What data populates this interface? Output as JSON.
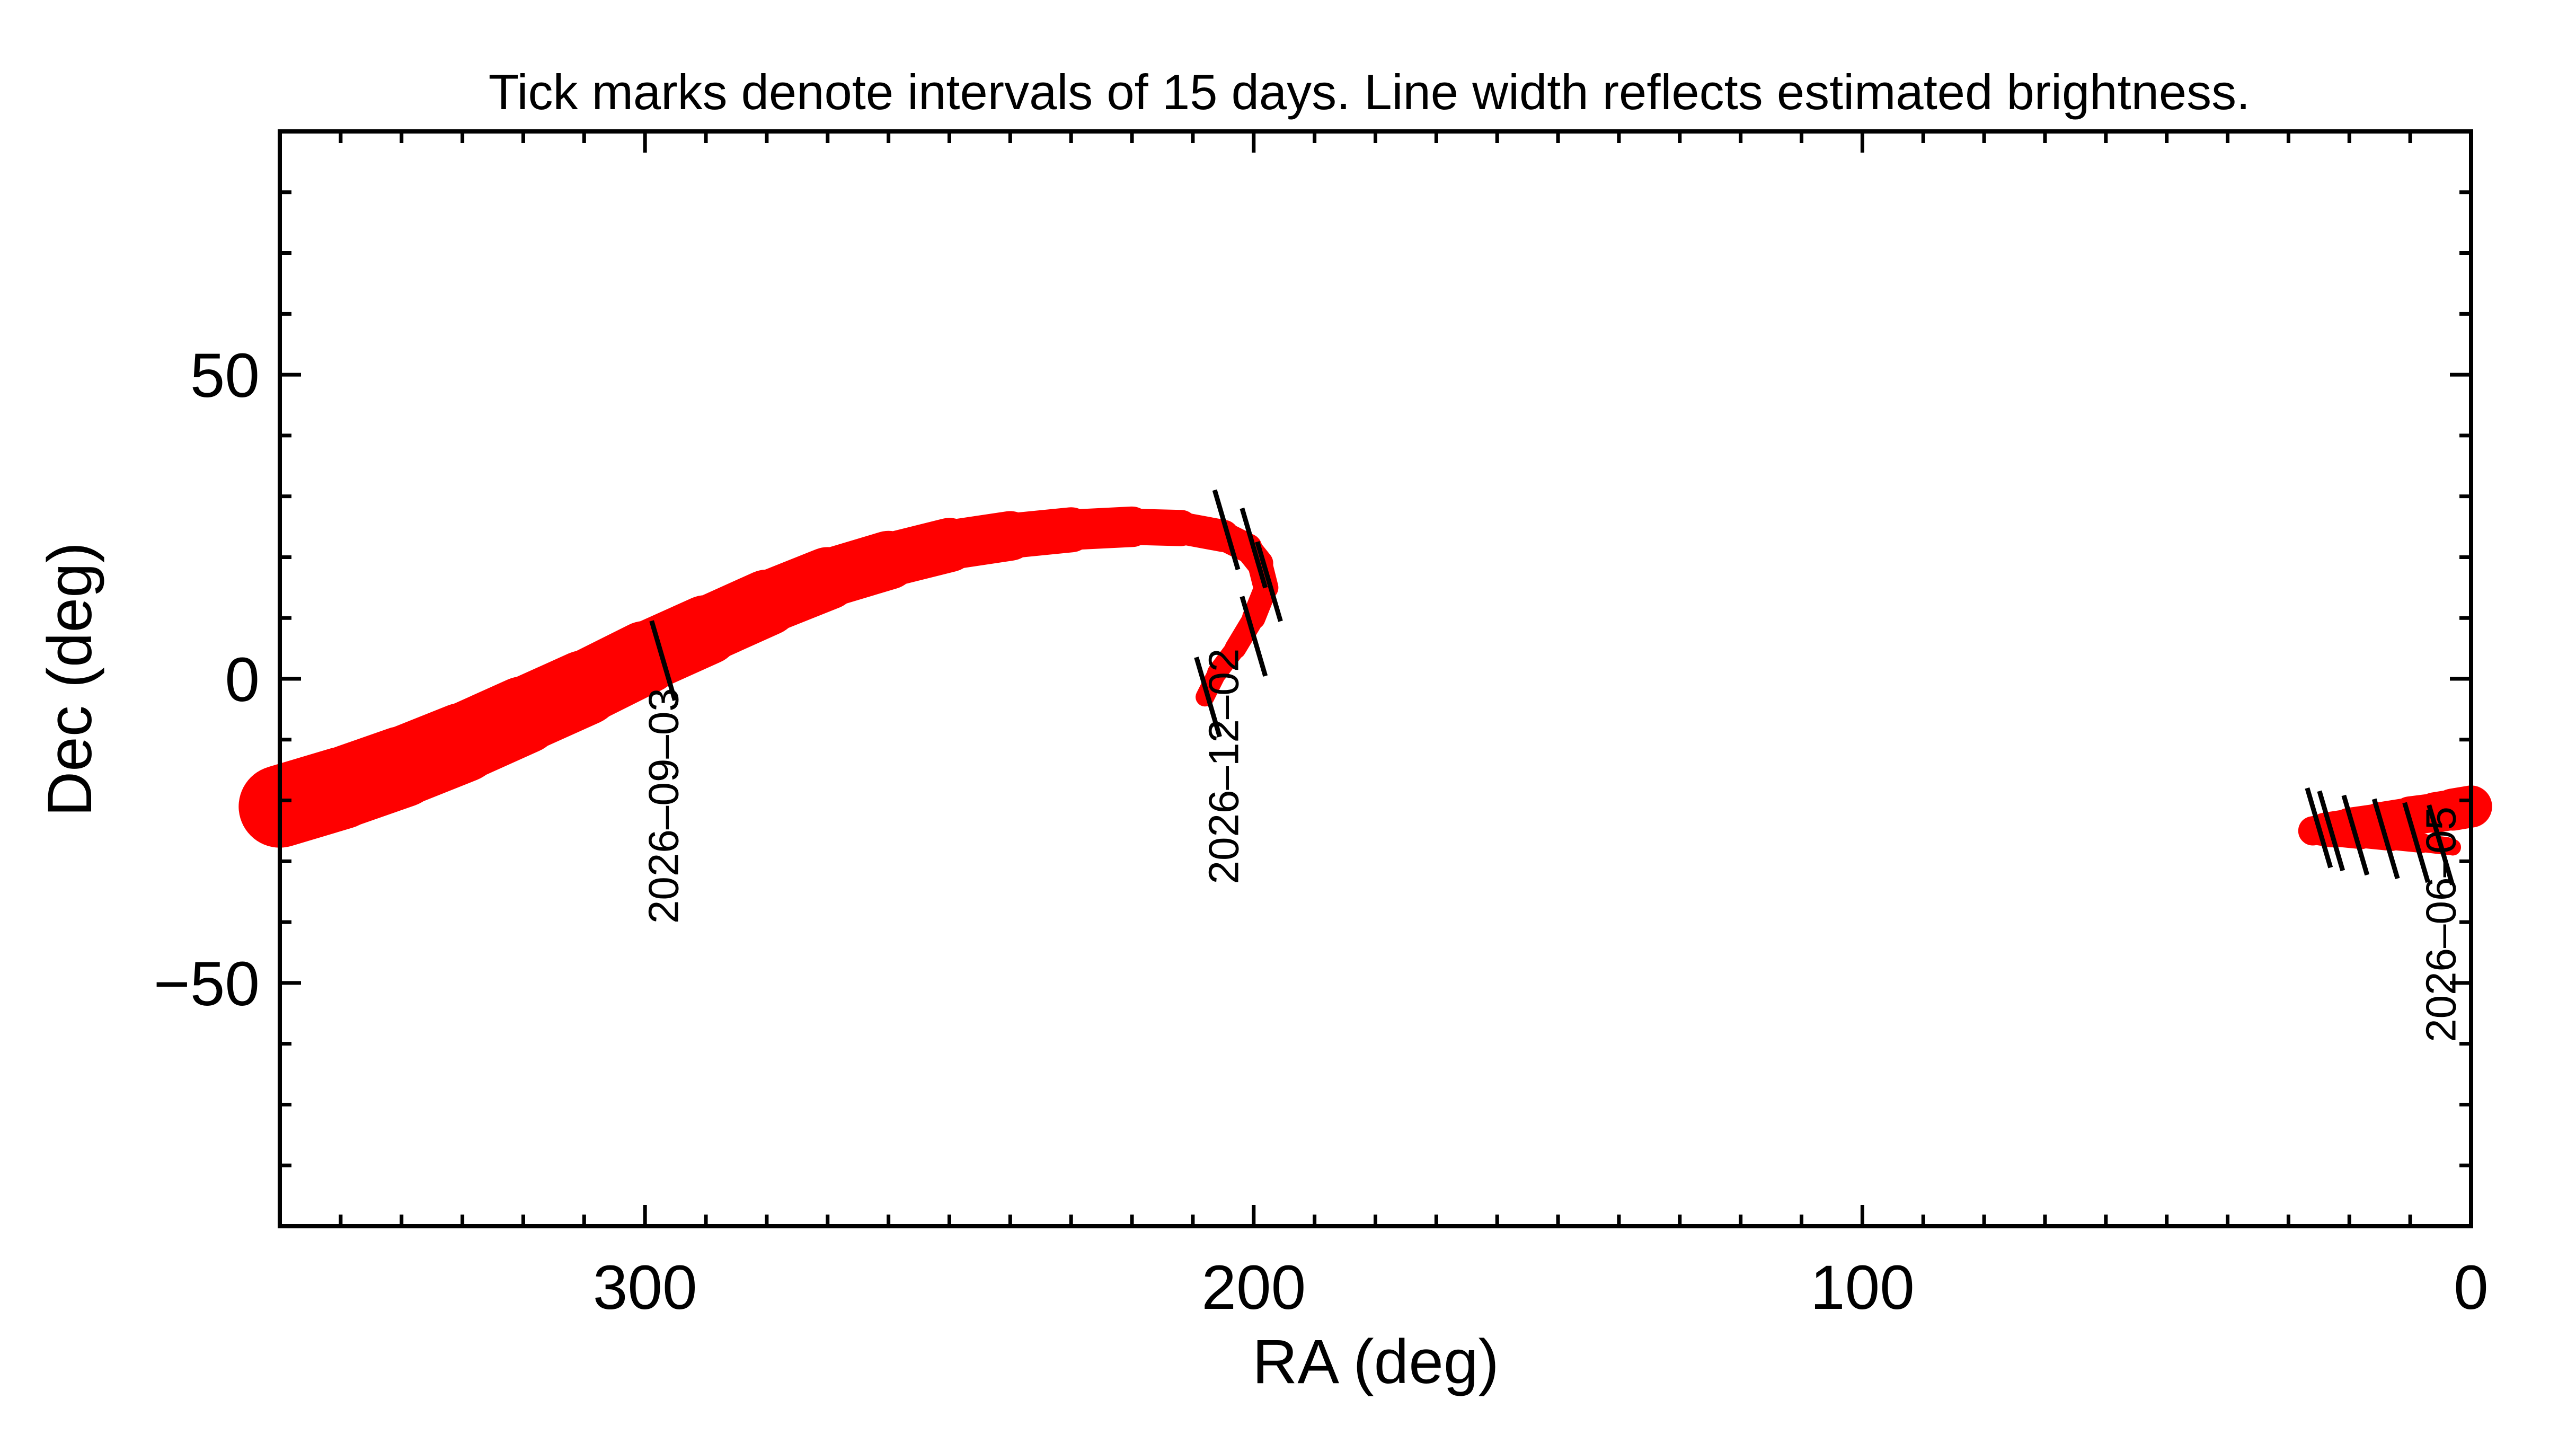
{
  "chart_data": {
    "type": "line",
    "title": "Tick marks denote intervals of 15 days.  Line width reflects estimated brightness.",
    "xlabel": "RA (deg)",
    "ylabel": "Dec (deg)",
    "xlim": [
      360,
      0
    ],
    "ylim": [
      -90,
      90
    ],
    "x_ticks": [
      {
        "value": 300,
        "label": "300"
      },
      {
        "value": 200,
        "label": "200"
      },
      {
        "value": 100,
        "label": "100"
      },
      {
        "value": 0,
        "label": "0"
      }
    ],
    "y_ticks": [
      {
        "value": 50,
        "label": "50"
      },
      {
        "value": 0,
        "label": "0"
      },
      {
        "value": -50,
        "label": "−50"
      }
    ],
    "x_minor_step": 10,
    "y_minor_step": 10,
    "line_color": "#ff0000",
    "tick_color": "#000000",
    "series": [
      {
        "ra": [
          360,
          350,
          340,
          330,
          320,
          310,
          300,
          290,
          280,
          270,
          260,
          250,
          240,
          230,
          220,
          212,
          205,
          201,
          199,
          198,
          200,
          203,
          206,
          208
        ],
        "dec": [
          -21,
          -18,
          -14.5,
          -10.5,
          -6,
          -1.5,
          3.5,
          8,
          12.5,
          16.5,
          19.5,
          22,
          23.5,
          24.5,
          25,
          24.8,
          23.5,
          21.5,
          19,
          15,
          10,
          5,
          1,
          -3
        ],
        "width": [
          13.5,
          13.5,
          13.2,
          13,
          12.6,
          12.2,
          11.8,
          11.2,
          10.6,
          10,
          9.3,
          8.5,
          7.8,
          7,
          6.3,
          5.6,
          5,
          4.6,
          4.2,
          4,
          3.7,
          3.4,
          3.2,
          3
        ]
      },
      {
        "ra": [
          0,
          3,
          6,
          10,
          15,
          20,
          24,
          26,
          23,
          18,
          13,
          8,
          4,
          3
        ],
        "dec": [
          -21,
          -21.5,
          -22,
          -22.5,
          -23.3,
          -24,
          -24.6,
          -25,
          -25.5,
          -26,
          -26.5,
          -27,
          -27.5,
          -27.7
        ],
        "width": [
          7,
          6.8,
          6.5,
          6.2,
          5.8,
          5.4,
          5,
          4.6,
          4.2,
          3.8,
          3.4,
          3.1,
          2.8,
          2.6
        ]
      }
    ],
    "date_ticks": [
      {
        "ra": 297,
        "dec": 3
      },
      {
        "ra": 204.5,
        "dec": 24.5
      },
      {
        "ra": 200,
        "dec": 21.5
      },
      {
        "ra": 197.5,
        "dec": 16
      },
      {
        "ra": 200,
        "dec": 7
      },
      {
        "ra": 207.5,
        "dec": -3
      },
      {
        "ra": 25,
        "dec": -24.5
      },
      {
        "ra": 23,
        "dec": -25
      },
      {
        "ra": 19,
        "dec": -25.7
      },
      {
        "ra": 14,
        "dec": -26.3
      },
      {
        "ra": 9,
        "dec": -26.9
      },
      {
        "ra": 5,
        "dec": -27.3
      }
    ],
    "date_labels": [
      {
        "text": "2026–09–03",
        "ra": 297,
        "dec": -1.5
      },
      {
        "text": "2026–12–02",
        "ra": 205,
        "dec": 5
      },
      {
        "text": "2026–06–05",
        "ra": 5,
        "dec": -21
      }
    ]
  }
}
